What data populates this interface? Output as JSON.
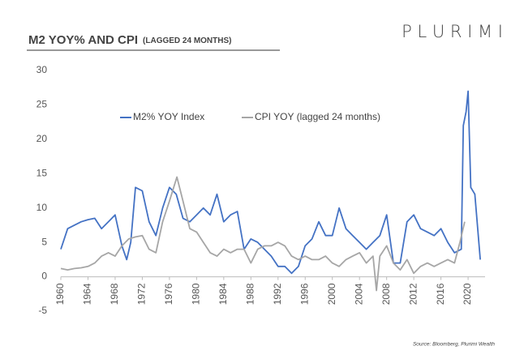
{
  "header": {
    "logo": "P L U R I M I"
  },
  "chart_data": {
    "type": "line",
    "title": "M2 YOY% AND CPI",
    "subtitle": "(LAGGED 24 MONTHS)",
    "source": "Source: Bloomberg, Plurimi Wealth",
    "xlim": [
      1960,
      2022.5
    ],
    "xticks": [
      1960,
      1964,
      1968,
      1972,
      1976,
      1980,
      1984,
      1988,
      1992,
      1996,
      2000,
      2004,
      2008,
      2012,
      2016,
      2020
    ],
    "ylim": [
      -5,
      30
    ],
    "yticks": [
      -5,
      0,
      5,
      10,
      15,
      20,
      25,
      30
    ],
    "grid": false,
    "legend": "top",
    "series": [
      {
        "name": "M2% YOY Index",
        "color": "#4472c4",
        "x": [
          1960,
          1961,
          1962,
          1963,
          1964,
          1965,
          1966,
          1967,
          1968,
          1969,
          1969.7,
          1970.3,
          1971,
          1972,
          1973,
          1974,
          1975,
          1976,
          1977,
          1978,
          1979,
          1980,
          1981,
          1982,
          1983,
          1984,
          1985,
          1986,
          1987,
          1988,
          1989,
          1990,
          1991,
          1992,
          1993,
          1994,
          1995,
          1996,
          1997,
          1998,
          1999,
          2000,
          2001,
          2002,
          2003,
          2004,
          2005,
          2006,
          2007,
          2008,
          2009,
          2010,
          2011,
          2012,
          2013,
          2014,
          2015,
          2016,
          2017,
          2018,
          2019,
          2019.3,
          2019.7,
          2020,
          2020.4,
          2021,
          2021.8
        ],
        "values": [
          4,
          7,
          7.5,
          8,
          8.3,
          8.5,
          7,
          8,
          9,
          4.5,
          2.5,
          5,
          13,
          12.5,
          8,
          6,
          10,
          13,
          12,
          8.5,
          8,
          9,
          10,
          9,
          12,
          8,
          9,
          9.5,
          4,
          5.5,
          5,
          4,
          3,
          1.5,
          1.5,
          0.5,
          1.5,
          4.5,
          5.5,
          8,
          6,
          6,
          10,
          7,
          6,
          5,
          4,
          5,
          6,
          9,
          2,
          2,
          8,
          9,
          7,
          6.5,
          6,
          7,
          5,
          3.5,
          4,
          22,
          24,
          27,
          13,
          12,
          2.5
        ]
      },
      {
        "name": "CPI YOY (lagged 24 months)",
        "color": "#a6a6a6",
        "x": [
          1960,
          1961,
          1962,
          1963,
          1964,
          1965,
          1966,
          1967,
          1968,
          1969,
          1970,
          1971,
          1972,
          1973,
          1974,
          1975,
          1976,
          1977.1,
          1978,
          1979,
          1980,
          1981,
          1982,
          1983,
          1984,
          1985,
          1986,
          1987,
          1988,
          1989,
          1990,
          1991,
          1992,
          1993,
          1994,
          1995,
          1996,
          1997,
          1998,
          1999,
          2000,
          2001,
          2002,
          2003,
          2004,
          2005,
          2006,
          2006.5,
          2007,
          2008,
          2009,
          2010,
          2011,
          2012,
          2013,
          2014,
          2015,
          2016,
          2017,
          2018,
          2018.8,
          2019.5
        ],
        "values": [
          1.2,
          1,
          1.2,
          1.3,
          1.5,
          2,
          3,
          3.5,
          3,
          4.5,
          5.5,
          5.8,
          6,
          4,
          3.5,
          8,
          11,
          14.5,
          11,
          7,
          6.5,
          5,
          3.5,
          3,
          4,
          3.5,
          4,
          4,
          2,
          4,
          4.5,
          4.5,
          5,
          4.5,
          3,
          2.5,
          3,
          2.5,
          2.5,
          3,
          2,
          1.5,
          2.5,
          3,
          3.5,
          2,
          3,
          -2,
          3,
          4.5,
          2,
          1,
          2.5,
          0.5,
          1.5,
          2,
          1.5,
          2,
          2.5,
          2,
          5,
          8
        ]
      }
    ]
  }
}
